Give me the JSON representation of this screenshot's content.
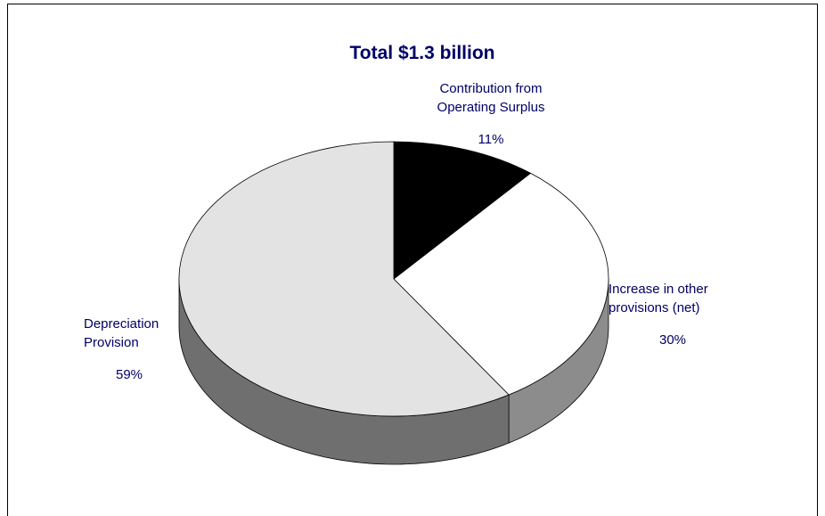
{
  "chart_data": {
    "type": "pie",
    "title": "Total $1.3 billion",
    "slices": [
      {
        "label_lines": [
          "Contribution from",
          "Operating Surplus"
        ],
        "percent_label": "11%",
        "value": 11,
        "color": "#000000"
      },
      {
        "label_lines": [
          "Increase in other",
          "provisions (net)"
        ],
        "percent_label": "30%",
        "value": 30,
        "color": "#ffffff"
      },
      {
        "label_lines": [
          "Depreciation",
          "Provision"
        ],
        "percent_label": "59%",
        "value": 59,
        "color": "#e3e3e3"
      }
    ],
    "style": "3d"
  }
}
